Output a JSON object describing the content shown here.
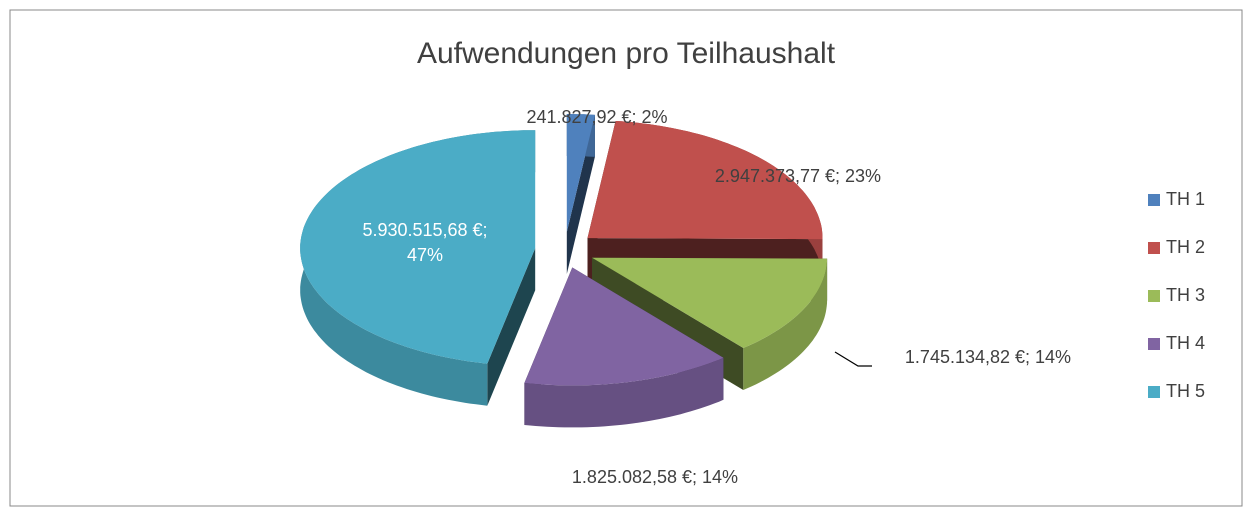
{
  "chart_data": {
    "type": "pie3d",
    "title": "Aufwendungen pro Teilhaushalt",
    "categories": [
      "TH 1",
      "TH 2",
      "TH 3",
      "TH 4",
      "TH 5"
    ],
    "values": [
      241827.92,
      2947373.77,
      1745134.82,
      1825082.58,
      5930515.68
    ],
    "value_labels": [
      "241.827,92 €; 2%",
      "2.947.373,77 €; 23%",
      "1.745.134,82 €; 14%",
      "1.825.082,58 €; 14%",
      "5.930.515,68 €; 47%"
    ],
    "colors": [
      "#4F81BD",
      "#C0504D",
      "#9BBB59",
      "#8064A2",
      "#4BACC6"
    ],
    "legend": "right"
  }
}
